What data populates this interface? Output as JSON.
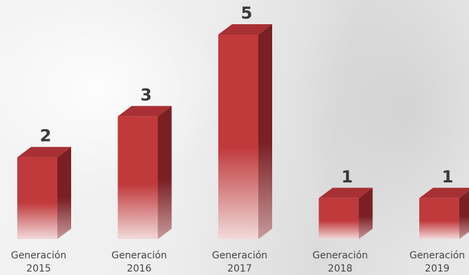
{
  "chart_data": {
    "type": "bar",
    "title": "",
    "xlabel": "",
    "ylabel": "",
    "ylim": [
      0,
      5
    ],
    "grid": false,
    "legend": "none",
    "style": "3d-gradient",
    "categories": [
      [
        "Generación",
        "2015"
      ],
      [
        "Generación",
        "2016"
      ],
      [
        "Generación",
        "2017"
      ],
      [
        "Generación",
        "2018"
      ],
      [
        "Generación",
        "2019"
      ]
    ],
    "series": [
      {
        "values": [
          2,
          3,
          5,
          1,
          1
        ],
        "data_labels": [
          "2",
          "3",
          "5",
          "1",
          "1"
        ]
      }
    ],
    "colors": {
      "front_top": "#c0393b",
      "front_fade": "#f2dada",
      "top_face": "#a83034",
      "side_top": "#7a1f23",
      "side_fade": "#c89a9c",
      "label": "#3a3a3a",
      "category_label": "#444444"
    }
  }
}
